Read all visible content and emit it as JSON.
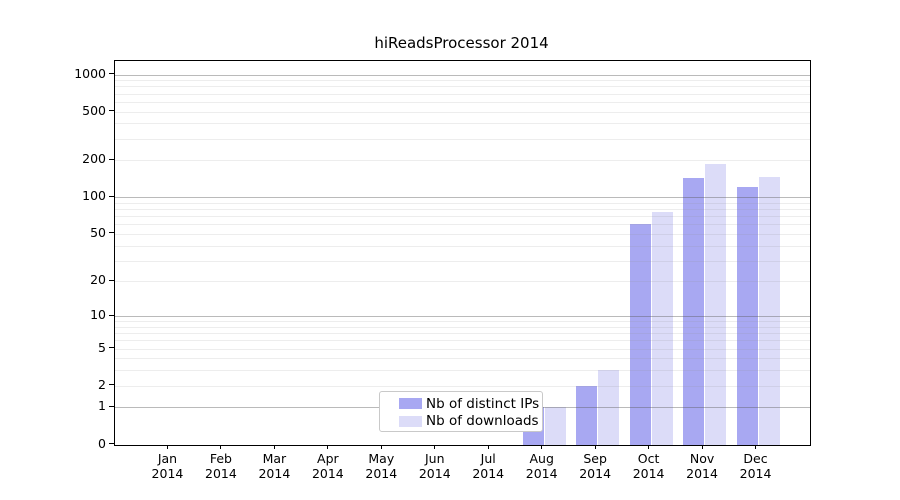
{
  "title": "hiReadsProcessor 2014",
  "colors": {
    "ips_bar": "#a8a8f2",
    "downloads_bar": "#dcdcf8",
    "frame": "#000000",
    "major_grid": "#bdbdbd",
    "minor_grid": "#ececec",
    "legend_border": "#c9c9c9",
    "text": "#000000"
  },
  "legend": {
    "items": [
      {
        "label": "Nb of distinct IPs",
        "series": "ips"
      },
      {
        "label": "Nb of downloads",
        "series": "downloads"
      }
    ]
  },
  "chart_data": {
    "type": "bar",
    "title": "hiReadsProcessor 2014",
    "yscale": "log10(1+x)",
    "grid": "major decades (1,10,100,1000) dark; log minor gridlines light; drawn over bars",
    "legend_position": "bottom-center",
    "categories": [
      "Jan",
      "Feb",
      "Mar",
      "Apr",
      "May",
      "Jun",
      "Jul",
      "Aug",
      "Sep",
      "Oct",
      "Nov",
      "Dec"
    ],
    "category_year": "2014",
    "yticks": [
      0,
      1,
      2,
      5,
      10,
      20,
      50,
      100,
      200,
      500,
      1000
    ],
    "ylim": [
      0,
      1300
    ],
    "series": [
      {
        "name": "Nb of distinct IPs",
        "color": "#a8a8f2",
        "values": [
          0,
          0,
          0,
          0,
          0,
          0,
          0,
          1,
          2,
          60,
          143,
          122
        ]
      },
      {
        "name": "Nb of downloads",
        "color": "#dcdcf8",
        "values": [
          0,
          0,
          0,
          0,
          0,
          0,
          0,
          1,
          3,
          76,
          186,
          146
        ]
      }
    ]
  }
}
